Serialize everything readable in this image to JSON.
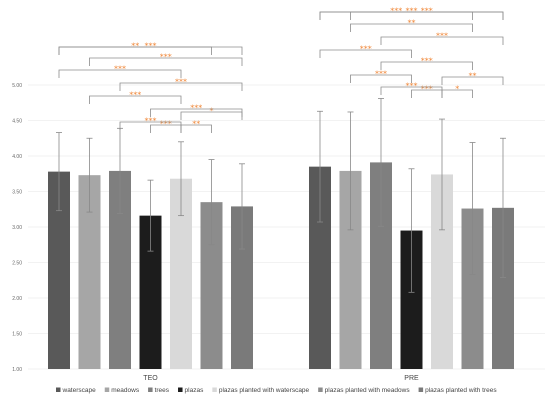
{
  "chart_data": {
    "type": "bar",
    "groups": [
      "TEO",
      "PRE"
    ],
    "ylim": [
      1.0,
      5.0
    ],
    "yticks": [
      "1.00",
      "1.50",
      "2.00",
      "2.50",
      "3.00",
      "3.50",
      "4.00",
      "4.50",
      "5.00"
    ],
    "grid": true,
    "legend_position": "bottom",
    "series": [
      {
        "name": "waterscape",
        "color": "#595959",
        "values": [
          3.78,
          3.85
        ],
        "errors": [
          0.55,
          0.78
        ]
      },
      {
        "name": "meadows",
        "color": "#a6a6a6",
        "values": [
          3.73,
          3.79
        ],
        "errors": [
          0.52,
          0.83
        ]
      },
      {
        "name": "trees",
        "color": "#7f7f7f",
        "values": [
          3.79,
          3.91
        ],
        "errors": [
          0.6,
          0.9
        ]
      },
      {
        "name": "plazas",
        "color": "#1c1c1c",
        "values": [
          3.16,
          2.95
        ],
        "errors": [
          0.5,
          0.87
        ]
      },
      {
        "name": "plazas planted with waterscape",
        "color": "#d9d9d9",
        "values": [
          3.68,
          3.74
        ],
        "errors": [
          0.52,
          0.78
        ]
      },
      {
        "name": "plazas planted with meadows",
        "color": "#8c8c8c",
        "values": [
          3.35,
          3.26
        ],
        "errors": [
          0.6,
          0.93
        ]
      },
      {
        "name": "plazas planted with trees",
        "color": "#7a7a7a",
        "values": [
          3.29,
          3.27
        ],
        "errors": [
          0.6,
          0.98
        ]
      }
    ],
    "significance": [
      {
        "group": "TEO",
        "from": 0,
        "to": 6,
        "label": "***"
      },
      {
        "group": "TEO",
        "from": 1,
        "to": 6,
        "label": "***"
      },
      {
        "group": "TEO",
        "from": 2,
        "to": 6,
        "label": "***"
      },
      {
        "group": "TEO",
        "from": 3,
        "to": 6,
        "label": "***"
      },
      {
        "group": "TEO",
        "from": 0,
        "to": 5,
        "label": "**"
      },
      {
        "group": "TEO",
        "from": 0,
        "to": 4,
        "label": "***"
      },
      {
        "group": "TEO",
        "from": 1,
        "to": 4,
        "label": "***"
      },
      {
        "group": "TEO",
        "from": 2,
        "to": 4,
        "label": "***"
      },
      {
        "group": "TEO",
        "from": 4,
        "to": 6,
        "label": "*"
      },
      {
        "group": "TEO",
        "from": 3,
        "to": 4,
        "label": "***"
      },
      {
        "group": "TEO",
        "from": 4,
        "to": 5,
        "label": "**"
      },
      {
        "group": "PRE",
        "from": 0,
        "to": 6,
        "label": "***"
      },
      {
        "group": "PRE",
        "from": 1,
        "to": 6,
        "label": "***"
      },
      {
        "group": "PRE",
        "from": 2,
        "to": 6,
        "label": "***"
      },
      {
        "group": "PRE",
        "from": 0,
        "to": 5,
        "label": "***"
      },
      {
        "group": "PRE",
        "from": 1,
        "to": 5,
        "label": "**"
      },
      {
        "group": "PRE",
        "from": 2,
        "to": 5,
        "label": "***"
      },
      {
        "group": "PRE",
        "from": 2,
        "to": 4,
        "label": "***"
      },
      {
        "group": "PRE",
        "from": 0,
        "to": 3,
        "label": "***"
      },
      {
        "group": "PRE",
        "from": 1,
        "to": 3,
        "label": "***"
      },
      {
        "group": "PRE",
        "from": 4,
        "to": 6,
        "label": "**"
      },
      {
        "group": "PRE",
        "from": 3,
        "to": 4,
        "label": "***"
      },
      {
        "group": "PRE",
        "from": 4,
        "to": 5,
        "label": "*"
      }
    ]
  }
}
